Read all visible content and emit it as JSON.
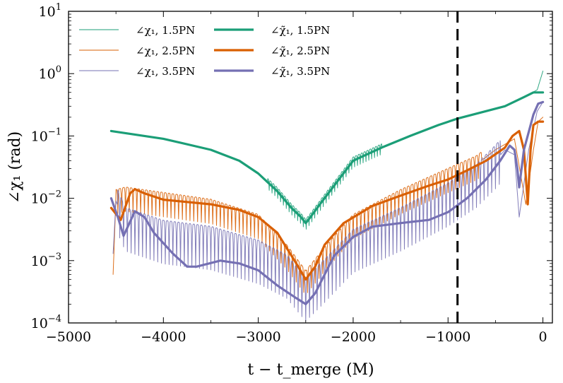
{
  "chart_data": {
    "type": "line",
    "xlabel": "t − t_merge (M)",
    "ylabel": "∠χ₁ (rad)",
    "xlim": [
      -5000,
      100
    ],
    "ylim_log10": [
      -4,
      1
    ],
    "yscale": "log",
    "grid": false,
    "legend_position": "top-left",
    "x_ticks": [
      {
        "value": -5000,
        "label": "−5000"
      },
      {
        "value": -4000,
        "label": "−4000"
      },
      {
        "value": -3000,
        "label": "−3000"
      },
      {
        "value": -2000,
        "label": "−2000"
      },
      {
        "value": -1000,
        "label": "−1000"
      },
      {
        "value": 0,
        "label": "0"
      }
    ],
    "y_ticks": [
      {
        "exp": -4,
        "label": "10",
        "sup": "−4"
      },
      {
        "exp": -3,
        "label": "10",
        "sup": "−3"
      },
      {
        "exp": -2,
        "label": "10",
        "sup": "−2"
      },
      {
        "exp": -1,
        "label": "10",
        "sup": "−1"
      },
      {
        "exp": 0,
        "label": "10",
        "sup": "0"
      },
      {
        "exp": 1,
        "label": "10",
        "sup": "1"
      }
    ],
    "vline_x": -900,
    "series": [
      {
        "name": "∠χ₁, 1.5PN",
        "color": "#1b9e77",
        "width": 1,
        "kind": "thin",
        "x": [
          -4550,
          -4000,
          -3500,
          -3200,
          -3000,
          -2800,
          -2650,
          -2550,
          -2500,
          -2450,
          -2350,
          -2200,
          -2000,
          -1700,
          -1400,
          -1100,
          -900,
          -600,
          -400,
          -200,
          -60,
          0
        ],
        "y": [
          0.12,
          0.09,
          0.06,
          0.04,
          0.025,
          0.013,
          0.007,
          0.005,
          0.004,
          0.005,
          0.008,
          0.016,
          0.04,
          0.065,
          0.1,
          0.15,
          0.19,
          0.25,
          0.3,
          0.42,
          0.55,
          1.1
        ],
        "osc_amp_log10": 0.12,
        "osc_period": 60,
        "osc_xrange": [
          -2900,
          -1700
        ]
      },
      {
        "name": "∠χ₁, 2.5PN",
        "color": "#d95f02",
        "width": 1,
        "kind": "thin",
        "x": [
          -4530,
          -4500,
          -4400,
          -4000,
          -3500,
          -3000,
          -2700,
          -2500,
          -2300,
          -2000,
          -1500,
          -1000,
          -700,
          -500,
          -300,
          -180,
          -100,
          -50,
          0
        ],
        "y": [
          0.0006,
          0.01,
          0.011,
          0.009,
          0.007,
          0.004,
          0.0013,
          0.0005,
          0.0012,
          0.004,
          0.01,
          0.022,
          0.035,
          0.06,
          0.09,
          0.008,
          0.06,
          0.17,
          0.2
        ],
        "osc_amp_log10": 0.28,
        "osc_period": 80,
        "osc_xrange": [
          -4500,
          -650
        ]
      },
      {
        "name": "∠χ₁, 3.5PN",
        "color": "#7570b3",
        "width": 1,
        "kind": "thin",
        "x": [
          -4530,
          -4500,
          -4400,
          -4000,
          -3500,
          -3000,
          -2700,
          -2500,
          -2300,
          -2000,
          -1500,
          -1000,
          -700,
          -500,
          -400,
          -300,
          -250,
          -150,
          -60,
          0
        ],
        "y": [
          0.0013,
          0.009,
          0.004,
          0.0025,
          0.002,
          0.0012,
          0.0007,
          0.0003,
          0.0006,
          0.0018,
          0.004,
          0.01,
          0.02,
          0.04,
          0.06,
          0.05,
          0.005,
          0.06,
          0.25,
          0.35
        ],
        "osc_amp_log10": 0.5,
        "osc_period": 80,
        "osc_xrange": [
          -4480,
          -450
        ]
      },
      {
        "name": "∠χ̃₁, 1.5PN",
        "color": "#1b9e77",
        "width": 3.2,
        "kind": "thick",
        "x": [
          -4550,
          -4000,
          -3500,
          -3200,
          -3000,
          -2800,
          -2650,
          -2550,
          -2500,
          -2450,
          -2350,
          -2200,
          -2000,
          -1700,
          -1400,
          -1100,
          -900,
          -600,
          -400,
          -200,
          -100,
          0
        ],
        "y": [
          0.12,
          0.09,
          0.06,
          0.04,
          0.025,
          0.013,
          0.007,
          0.005,
          0.004,
          0.005,
          0.008,
          0.016,
          0.04,
          0.065,
          0.1,
          0.15,
          0.19,
          0.25,
          0.3,
          0.42,
          0.5,
          0.5
        ]
      },
      {
        "name": "∠χ̃₁, 2.5PN",
        "color": "#d95f02",
        "width": 3.2,
        "kind": "thick",
        "x": [
          -4550,
          -4450,
          -4350,
          -4300,
          -4200,
          -4000,
          -3500,
          -3200,
          -3000,
          -2800,
          -2600,
          -2500,
          -2400,
          -2300,
          -2100,
          -1800,
          -1500,
          -1200,
          -1000,
          -800,
          -600,
          -400,
          -320,
          -250,
          -200,
          -160,
          -130,
          -100,
          -50,
          0
        ],
        "y": [
          0.007,
          0.0045,
          0.012,
          0.014,
          0.012,
          0.0095,
          0.008,
          0.0065,
          0.005,
          0.0028,
          0.0009,
          0.0005,
          0.0008,
          0.0018,
          0.004,
          0.0075,
          0.011,
          0.016,
          0.02,
          0.028,
          0.04,
          0.065,
          0.1,
          0.12,
          0.06,
          0.008,
          0.06,
          0.15,
          0.17,
          0.17
        ]
      },
      {
        "name": "∠χ̃₁, 3.5PN",
        "color": "#7570b3",
        "width": 3.2,
        "kind": "thick",
        "x": [
          -4550,
          -4480,
          -4420,
          -4300,
          -4200,
          -4100,
          -3900,
          -3750,
          -3650,
          -3400,
          -3200,
          -3000,
          -2800,
          -2600,
          -2500,
          -2400,
          -2200,
          -2000,
          -1800,
          -1500,
          -1200,
          -1000,
          -800,
          -600,
          -450,
          -350,
          -300,
          -270,
          -250,
          -200,
          -100,
          -50,
          0
        ],
        "y": [
          0.01,
          0.005,
          0.0025,
          0.0062,
          0.005,
          0.0028,
          0.0013,
          0.0008,
          0.0008,
          0.001,
          0.0009,
          0.0007,
          0.0004,
          0.00025,
          0.0002,
          0.0003,
          0.0012,
          0.0024,
          0.0035,
          0.004,
          0.0045,
          0.006,
          0.01,
          0.02,
          0.04,
          0.07,
          0.06,
          0.03,
          0.015,
          0.06,
          0.22,
          0.33,
          0.35
        ]
      }
    ]
  },
  "legend": {
    "col1": [
      {
        "label": "∠χ₁, 1.5PN",
        "color": "#1b9e77"
      },
      {
        "label": "∠χ₁, 2.5PN",
        "color": "#d95f02"
      },
      {
        "label": "∠χ₁, 3.5PN",
        "color": "#7570b3"
      }
    ],
    "col2": [
      {
        "label": "∠χ̃₁, 1.5PN",
        "color": "#1b9e77"
      },
      {
        "label": "∠χ̃₁, 2.5PN",
        "color": "#d95f02"
      },
      {
        "label": "∠χ̃₁, 3.5PN",
        "color": "#7570b3"
      }
    ]
  }
}
